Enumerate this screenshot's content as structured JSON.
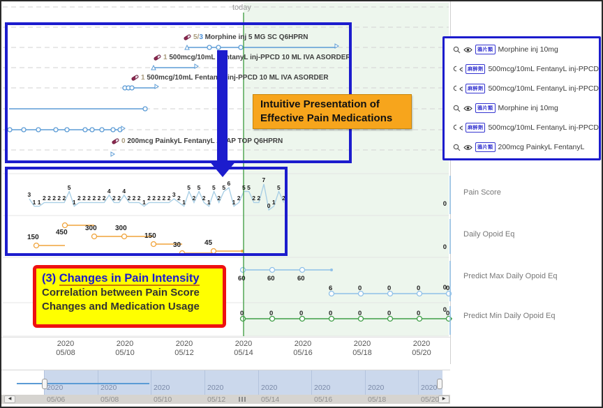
{
  "timeline": {
    "today_label": "today"
  },
  "annotations": {
    "orange": {
      "line1": "Intuitive Presentation of",
      "line2": "Effective Pain Medications"
    },
    "yellow": {
      "prefix": "(3) ",
      "title": "Changes in Pain Intensity",
      "line2": "Correlation between Pain Score",
      "line3": "Changes and Medication Usage"
    }
  },
  "medications": {
    "rows": [
      {
        "prefix": "5",
        "slash": "/",
        "count": "3",
        "label": "Morphine inj 5 MG SC Q6HPRN"
      },
      {
        "prefix": "1",
        "slash": "",
        "count": "",
        "label": "500mcg/10mL FentanyL inj-PPCD 10 ML IVA ASORDER"
      },
      {
        "prefix": "1",
        "slash": "",
        "count": "",
        "label": "500mcg/10mL FentanyL inj-PPCD 10 ML IVA ASORDER"
      },
      {
        "prefix": "",
        "slash": "",
        "count": "",
        "label": ""
      },
      {
        "prefix": "",
        "slash": "",
        "count": "",
        "label": ""
      },
      {
        "prefix": "0",
        "slash": "",
        "count": "",
        "label": "200mcg PainkyL FentanyL 2 TAP TOP Q6HPRN"
      }
    ]
  },
  "legend_panel": {
    "items": [
      {
        "badge": "鴉片類",
        "name": "Morphine inj 10mg"
      },
      {
        "badge": "麻醉劑",
        "name": "500mcg/10mL FentanyL inj-PPCD"
      },
      {
        "badge": "麻醉劑",
        "name": "500mcg/10mL FentanyL inj-PPCD"
      },
      {
        "badge": "鴉片類",
        "name": "Morphine inj 10mg"
      },
      {
        "badge": "麻醉劑",
        "name": "500mcg/10mL FentanyL inj-PPCD"
      },
      {
        "badge": "鴉片類",
        "name": "200mcg PainkyL FentanyL"
      }
    ]
  },
  "chart_labels": {
    "pain": "Pain Score",
    "daily": "Daily Opoid Eq",
    "pmax": "Predict Max Daily Opoid Eq",
    "pmin": "Predict Min Daily Opoid Eq",
    "axis_zero": "0"
  },
  "axis": {
    "ticks": [
      {
        "year": "2020",
        "date": "05/08"
      },
      {
        "year": "2020",
        "date": "05/10"
      },
      {
        "year": "2020",
        "date": "05/12"
      },
      {
        "year": "2020",
        "date": "05/14"
      },
      {
        "year": "2020",
        "date": "05/16"
      },
      {
        "year": "2020",
        "date": "05/18"
      },
      {
        "year": "2020",
        "date": "05/20"
      }
    ]
  },
  "minimap": {
    "ticks": [
      {
        "year": "2020",
        "date": "05/06"
      },
      {
        "year": "2020",
        "date": "05/08"
      },
      {
        "year": "2020",
        "date": "05/10"
      },
      {
        "year": "2020",
        "date": "05/12"
      },
      {
        "year": "2020",
        "date": "05/14"
      },
      {
        "year": "2020",
        "date": "05/16"
      },
      {
        "year": "2020",
        "date": "05/18"
      },
      {
        "year": "2020",
        "date": "05/20"
      }
    ]
  },
  "chart_data": [
    {
      "type": "line",
      "title": "Pain Score",
      "values": [
        3,
        1,
        1,
        2,
        2,
        2,
        2,
        2,
        5,
        1,
        2,
        2,
        2,
        2,
        2,
        2,
        4,
        2,
        2,
        4,
        2,
        2,
        2,
        1,
        2,
        2,
        2,
        2,
        2,
        3,
        2,
        1,
        5,
        2,
        5,
        2,
        1,
        5,
        2,
        5,
        6,
        1,
        2,
        5,
        5,
        2,
        2,
        7,
        0,
        1,
        5,
        2
      ],
      "ylim": [
        0,
        10
      ],
      "legend_position": "right"
    },
    {
      "type": "line",
      "title": "Daily Opoid Eq",
      "values": [
        150,
        450,
        300,
        300,
        150,
        30,
        45
      ],
      "legend_position": "right"
    },
    {
      "type": "line",
      "title": "Predict Max Daily Opoid Eq",
      "values": [
        60,
        60,
        60,
        6,
        0,
        0,
        0,
        0
      ],
      "legend_position": "right"
    },
    {
      "type": "line",
      "title": "Predict Min Daily Opoid Eq",
      "values": [
        0,
        0,
        0,
        0,
        0,
        0,
        0,
        0
      ],
      "legend_position": "right"
    }
  ],
  "colors": {
    "annotation_blue": "#1c1ccd",
    "med_line": "#5b9bd5",
    "pain_line": "#a9cfe5",
    "orange_line": "#f0a33a",
    "today_green": "#46a049",
    "predict_green": "#3f9e46",
    "predict_blue": "#8fc0e8",
    "callout_orange_bg": "#f7a51c",
    "callout_yellow_bg": "#ffff00",
    "callout_red_border": "#ee1111",
    "future_bg": "#edf6ed"
  }
}
